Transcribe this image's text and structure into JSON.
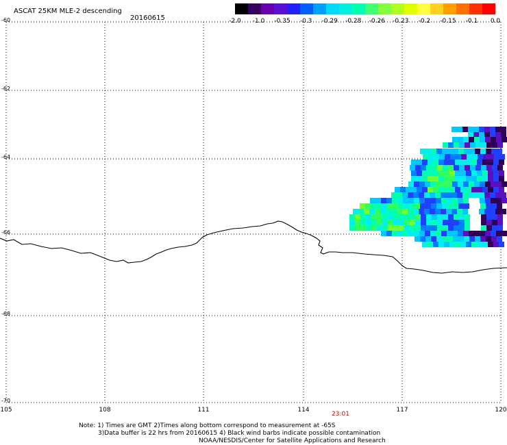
{
  "header": {
    "title": "ASCAT 25KM MLE-2 descending",
    "date": "20160615"
  },
  "colorbar": {
    "labels": [
      "-2.0",
      "-1.0",
      "-0.35",
      "-0.3",
      "-0.29",
      "-0.28",
      "-0.26",
      "-0.23",
      "-0.2",
      "-0.15",
      "-0.1",
      "0.0"
    ],
    "colors": [
      "#000000",
      "#3a0060",
      "#6a00b0",
      "#5a10d0",
      "#2020ff",
      "#0060ff",
      "#00a0ff",
      "#00d8ff",
      "#00f0e0",
      "#00ffb0",
      "#40ff70",
      "#80ff40",
      "#b0ff20",
      "#e0ff00",
      "#ffff40",
      "#ffd020",
      "#ffa000",
      "#ff7000",
      "#ff3000",
      "#ff0000"
    ]
  },
  "map": {
    "lon_range": [
      105,
      120
    ],
    "lat_range": [
      -70,
      -60
    ],
    "lon_ticks": [
      "105",
      "108",
      "111",
      "114",
      "117",
      "120"
    ],
    "lat_ticks": [
      "-60",
      "-62",
      "-64",
      "-66",
      "-68",
      "-70"
    ],
    "grid": true,
    "coastline_color": "#000000",
    "time_label": "23:01",
    "time_color": "#d00000"
  },
  "notes": {
    "line1": "Note: 1) Times are GMT 2)Times along bottom correspond to measurement at -65S",
    "line2": "3)Data buffer is 22 hrs from 20160615 4) Black wind barbs indicate possible contamination",
    "line3": "NOAA/NESDIS/Center for Satellite Applications and Research"
  }
}
